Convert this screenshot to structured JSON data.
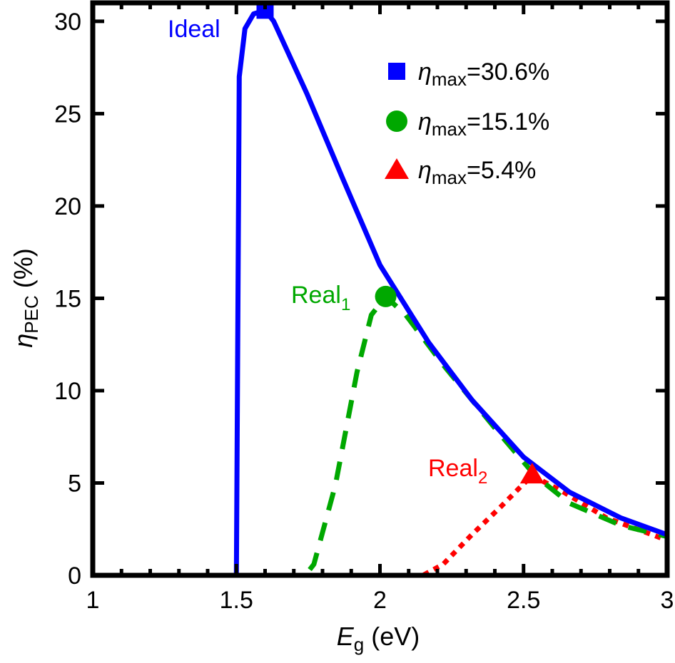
{
  "chart_data": {
    "type": "line",
    "xlabel": {
      "main": "E",
      "sub": "g",
      "unit": " (eV)"
    },
    "ylabel": {
      "main": "η",
      "sub": "PEC",
      "unit": " (%)"
    },
    "xlim": [
      1,
      3
    ],
    "ylim": [
      0,
      31
    ],
    "xticks": [
      1,
      1.5,
      2,
      2.5,
      3
    ],
    "xtick_labels": [
      "1",
      "1.5",
      "2",
      "2.5",
      "3"
    ],
    "yticks": [
      0,
      5,
      10,
      15,
      20,
      25,
      30
    ],
    "ytick_labels": [
      "0",
      "5",
      "10",
      "15",
      "20",
      "25",
      "30"
    ],
    "grid": false,
    "legend_placement": "top-right",
    "series": [
      {
        "name": "Ideal",
        "label_sub": "",
        "color": "#0000ff",
        "style": "solid",
        "marker": "square",
        "peak": {
          "x": 1.6,
          "y": 30.6
        },
        "legend": "=30.6%",
        "x": [
          1.0,
          1.497,
          1.5,
          1.51,
          1.53,
          1.56,
          1.6,
          1.63,
          1.745,
          1.87,
          2.0,
          2.17,
          2.32,
          2.5,
          2.66,
          2.84,
          3.0
        ],
        "y": [
          0,
          0,
          0,
          27,
          29.6,
          30.4,
          30.6,
          30.0,
          26.1,
          21.5,
          16.8,
          12.6,
          9.5,
          6.4,
          4.5,
          3.1,
          2.2
        ]
      },
      {
        "name": "Real",
        "label_sub": "1",
        "color": "#00a800",
        "style": "dashed",
        "marker": "octagon",
        "peak": {
          "x": 2.02,
          "y": 15.1
        },
        "legend": "=15.1%",
        "x": [
          1.0,
          1.74,
          1.77,
          1.845,
          1.92,
          1.97,
          2.02,
          2.09,
          2.22,
          2.42,
          2.54,
          2.66,
          2.84,
          3.0
        ],
        "y": [
          0,
          0,
          0.6,
          4.9,
          11,
          14.1,
          15.1,
          14.1,
          11.4,
          7.6,
          5.4,
          3.9,
          2.7,
          2.1
        ]
      },
      {
        "name": "Real",
        "label_sub": "2",
        "color": "#ff0000",
        "style": "dotted",
        "marker": "triangle",
        "peak": {
          "x": 2.53,
          "y": 5.4
        },
        "legend": "=5.4%",
        "x": [
          1.0,
          2.15,
          2.22,
          2.32,
          2.42,
          2.49,
          2.53,
          2.64,
          2.79,
          3.0
        ],
        "y": [
          0,
          0,
          0.6,
          2.2,
          3.7,
          4.8,
          5.4,
          4.5,
          3.1,
          1.9
        ]
      }
    ],
    "legend_symbol": {
      "main": "η",
      "sub": "max"
    }
  }
}
